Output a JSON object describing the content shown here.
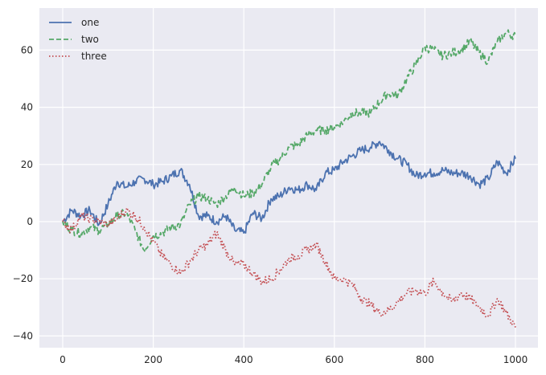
{
  "chart_data": {
    "type": "line",
    "title": "",
    "xlabel": "",
    "ylabel": "",
    "xlim": [
      -50,
      1050
    ],
    "ylim": [
      -44,
      74
    ],
    "grid": true,
    "legend_position": "upper left",
    "xticks": [
      0,
      200,
      400,
      600,
      800,
      1000
    ],
    "yticks": [
      -40,
      -20,
      0,
      20,
      40,
      60
    ],
    "xtick_labels": [
      "0",
      "200",
      "400",
      "600",
      "800",
      "1000"
    ],
    "ytick_labels": [
      "−40",
      "−20",
      "0",
      "20",
      "40",
      "60"
    ],
    "x": [
      0,
      20,
      40,
      60,
      80,
      100,
      120,
      140,
      160,
      180,
      200,
      220,
      240,
      260,
      280,
      300,
      320,
      340,
      360,
      380,
      400,
      420,
      440,
      460,
      480,
      500,
      520,
      540,
      560,
      580,
      600,
      620,
      640,
      660,
      680,
      700,
      720,
      740,
      760,
      780,
      800,
      820,
      840,
      860,
      880,
      900,
      920,
      940,
      960,
      980,
      1000
    ],
    "series": [
      {
        "name": "one",
        "color": "#4c72b0",
        "style": "solid",
        "values": [
          0,
          4,
          2,
          4,
          -1,
          6,
          14,
          12,
          14,
          15,
          13,
          14,
          16,
          18,
          13,
          2,
          2,
          0,
          2,
          -3,
          -4,
          3,
          1,
          8,
          9,
          12,
          11,
          13,
          11,
          17,
          18,
          21,
          23,
          25,
          26,
          28,
          25,
          22,
          20,
          16,
          17,
          17,
          18,
          17,
          17,
          16,
          13,
          15,
          21,
          17,
          22
        ]
      },
      {
        "name": "two",
        "color": "#55a868",
        "style": "dashed",
        "values": [
          0,
          -3,
          -4,
          -2,
          -3,
          -1,
          2,
          3,
          -3,
          -10,
          -5,
          -4,
          -2,
          -1,
          6,
          9,
          8,
          6,
          9,
          12,
          9,
          10,
          13,
          19,
          22,
          26,
          27,
          30,
          32,
          32,
          33,
          35,
          38,
          38,
          38,
          42,
          45,
          44,
          50,
          55,
          61,
          60,
          58,
          59,
          60,
          63,
          59,
          56,
          63,
          66,
          65
        ]
      },
      {
        "name": "three",
        "color": "#c44e52",
        "style": "dotted",
        "values": [
          0,
          -3,
          2,
          1,
          0,
          -1,
          1,
          4,
          2,
          -2,
          -7,
          -12,
          -15,
          -18,
          -14,
          -10,
          -8,
          -4,
          -10,
          -15,
          -15,
          -18,
          -21,
          -20,
          -17,
          -13,
          -12,
          -10,
          -8,
          -14,
          -20,
          -20,
          -22,
          -27,
          -29,
          -32,
          -31,
          -28,
          -25,
          -24,
          -25,
          -21,
          -25,
          -28,
          -25,
          -27,
          -30,
          -33,
          -27,
          -32,
          -37
        ]
      }
    ]
  }
}
